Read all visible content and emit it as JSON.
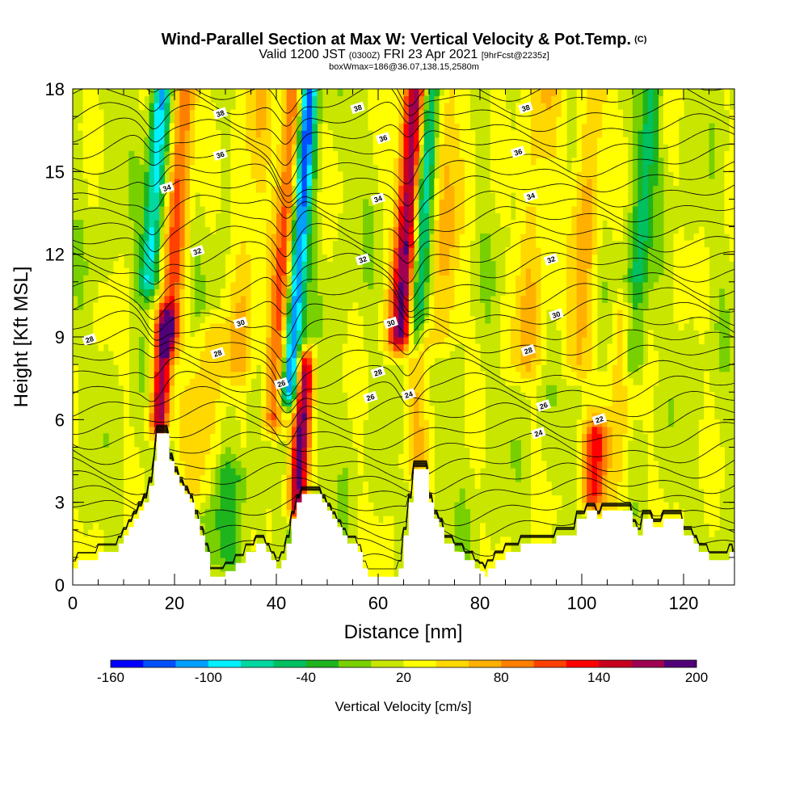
{
  "header": {
    "title": "Wind-Parallel Section at Max W: Vertical Velocity & Pot.Temp.",
    "copyright": "(C)",
    "valid_prefix": "Valid 1200 JST",
    "valid_zulu": "(0300Z)",
    "valid_date": "FRI 23 Apr 2021",
    "forecast": "[9hrFcst@2235z]",
    "box_info": "boxWmax=186@36.07,138.15,2580m"
  },
  "colors": {
    "palette": [
      "#0000ff",
      "#0050ff",
      "#00a0ff",
      "#00f0ff",
      "#00d8a0",
      "#00c060",
      "#1eb41e",
      "#78d000",
      "#c8e600",
      "#ffff00",
      "#ffd800",
      "#ffb000",
      "#ff8000",
      "#ff4000",
      "#ff0000",
      "#c8001e",
      "#a00050",
      "#500078"
    ],
    "terrain": "#ffffff"
  },
  "chart_data": {
    "type": "heatmap",
    "xlabel": "Distance [nm]",
    "ylabel": "Height [Kft MSL]",
    "xlim": [
      0,
      130
    ],
    "ylim": [
      0,
      18
    ],
    "xticks": [
      0,
      20,
      40,
      60,
      80,
      100,
      120
    ],
    "yticks": [
      0,
      3,
      6,
      9,
      12,
      15,
      18
    ],
    "colorbar": {
      "title": "Vertical Velocity [cm/s]",
      "min": -160,
      "max": 200,
      "step": 20,
      "labels": [
        "-160",
        "-100",
        "-40",
        "20",
        "80",
        "140",
        "200"
      ]
    },
    "terrain_kft": [
      [
        0,
        0.6
      ],
      [
        1,
        0.6
      ],
      [
        1,
        0.9
      ],
      [
        5,
        0.9
      ],
      [
        5,
        1.2
      ],
      [
        9,
        1.2
      ],
      [
        9,
        1.5
      ],
      [
        10,
        1.5
      ],
      [
        10,
        1.8
      ],
      [
        11,
        1.8
      ],
      [
        11,
        2.1
      ],
      [
        12,
        2.1
      ],
      [
        12,
        2.4
      ],
      [
        13,
        2.4
      ],
      [
        13,
        2.7
      ],
      [
        14,
        2.7
      ],
      [
        14,
        3.0
      ],
      [
        15,
        3.0
      ],
      [
        15,
        3.6
      ],
      [
        16,
        3.6
      ],
      [
        16,
        4.5
      ],
      [
        16.5,
        4.5
      ],
      [
        16.5,
        5.5
      ],
      [
        19,
        5.5
      ],
      [
        19,
        4.5
      ],
      [
        20,
        4.5
      ],
      [
        20,
        4.0
      ],
      [
        21,
        4.0
      ],
      [
        21,
        3.6
      ],
      [
        22,
        3.6
      ],
      [
        22,
        3.3
      ],
      [
        23,
        3.3
      ],
      [
        23,
        3.0
      ],
      [
        24,
        3.0
      ],
      [
        24,
        2.4
      ],
      [
        25,
        2.4
      ],
      [
        25,
        1.8
      ],
      [
        26,
        1.8
      ],
      [
        26,
        1.2
      ],
      [
        27,
        1.2
      ],
      [
        27,
        0.3
      ],
      [
        30,
        0.3
      ],
      [
        30,
        0.5
      ],
      [
        32,
        0.5
      ],
      [
        32,
        0.8
      ],
      [
        34,
        0.8
      ],
      [
        34,
        1.2
      ],
      [
        36,
        1.2
      ],
      [
        36,
        1.5
      ],
      [
        38,
        1.5
      ],
      [
        38,
        1.2
      ],
      [
        39,
        1.2
      ],
      [
        39,
        0.9
      ],
      [
        40,
        0.9
      ],
      [
        40,
        0.6
      ],
      [
        41,
        0.6
      ],
      [
        41,
        0.9
      ],
      [
        42,
        0.9
      ],
      [
        42,
        1.5
      ],
      [
        43,
        1.5
      ],
      [
        43,
        2.4
      ],
      [
        44,
        2.4
      ],
      [
        44,
        3.0
      ],
      [
        45,
        3.0
      ],
      [
        45,
        3.3
      ],
      [
        49,
        3.3
      ],
      [
        49,
        3.0
      ],
      [
        50,
        3.0
      ],
      [
        50,
        2.7
      ],
      [
        51,
        2.7
      ],
      [
        51,
        2.4
      ],
      [
        52,
        2.4
      ],
      [
        52,
        2.1
      ],
      [
        53,
        2.1
      ],
      [
        53,
        1.8
      ],
      [
        54,
        1.8
      ],
      [
        54,
        1.5
      ],
      [
        56,
        1.5
      ],
      [
        56,
        1.2
      ],
      [
        57,
        1.2
      ],
      [
        57,
        0.6
      ],
      [
        58,
        0.6
      ],
      [
        58,
        0.3
      ],
      [
        64,
        0.3
      ],
      [
        64,
        0.6
      ],
      [
        65,
        0.6
      ],
      [
        65,
        1.8
      ],
      [
        66,
        1.8
      ],
      [
        66,
        3.0
      ],
      [
        67,
        3.0
      ],
      [
        67,
        4.2
      ],
      [
        70,
        4.2
      ],
      [
        70,
        3.0
      ],
      [
        71,
        3.0
      ],
      [
        71,
        2.4
      ],
      [
        72,
        2.4
      ],
      [
        72,
        2.1
      ],
      [
        73,
        2.1
      ],
      [
        73,
        1.5
      ],
      [
        75,
        1.5
      ],
      [
        75,
        1.2
      ],
      [
        77,
        1.2
      ],
      [
        77,
        0.9
      ],
      [
        79,
        0.9
      ],
      [
        79,
        0.6
      ],
      [
        80,
        0.6
      ],
      [
        80,
        0.5
      ],
      [
        81,
        0.5
      ],
      [
        81,
        0.3
      ],
      [
        81.5,
        0.3
      ],
      [
        81.5,
        0.6
      ],
      [
        83,
        0.6
      ],
      [
        83,
        0.9
      ],
      [
        85,
        0.9
      ],
      [
        85,
        1.2
      ],
      [
        88,
        1.2
      ],
      [
        88,
        1.5
      ],
      [
        95,
        1.5
      ],
      [
        95,
        1.8
      ],
      [
        99,
        1.8
      ],
      [
        99,
        2.4
      ],
      [
        101,
        2.4
      ],
      [
        101,
        2.7
      ],
      [
        103,
        2.7
      ],
      [
        103,
        2.4
      ],
      [
        104,
        2.4
      ],
      [
        104,
        2.7
      ],
      [
        110,
        2.7
      ],
      [
        110,
        2.1
      ],
      [
        111,
        2.1
      ],
      [
        111,
        1.8
      ],
      [
        112,
        1.8
      ],
      [
        112,
        2.4
      ],
      [
        114,
        2.4
      ],
      [
        114,
        2.1
      ],
      [
        116,
        2.1
      ],
      [
        116,
        2.4
      ],
      [
        120,
        2.4
      ],
      [
        120,
        1.8
      ],
      [
        122,
        1.8
      ],
      [
        122,
        1.5
      ],
      [
        123,
        1.5
      ],
      [
        123,
        1.2
      ],
      [
        125,
        1.2
      ],
      [
        125,
        0.9
      ],
      [
        129,
        0.9
      ],
      [
        129,
        1.2
      ],
      [
        130,
        1.2
      ],
      [
        130,
        0
      ]
    ],
    "updrafts_cm_s": [
      {
        "x": 17,
        "y0": 6.0,
        "y1": 9.5,
        "peak": 160,
        "width": 1.3
      },
      {
        "x": 19,
        "y0": 9.0,
        "y1": 18,
        "peak": 90,
        "width": 1.6
      },
      {
        "x": 25,
        "y0": 3.5,
        "y1": 9,
        "peak": 40,
        "width": 2.5
      },
      {
        "x": 33,
        "y0": 8,
        "y1": 18,
        "peak": 40,
        "width": 2.2
      },
      {
        "x": 39.5,
        "y0": 6,
        "y1": 18,
        "peak": 100,
        "width": 1.6
      },
      {
        "x": 44,
        "y0": 3.0,
        "y1": 8,
        "peak": 160,
        "width": 1.2
      },
      {
        "x": 64.5,
        "y0": 9,
        "y1": 18,
        "peak": 180,
        "width": 1.7
      },
      {
        "x": 67,
        "y0": 4.5,
        "y1": 9,
        "peak": 40,
        "width": 2.0
      },
      {
        "x": 72,
        "y0": 9,
        "y1": 18,
        "peak": 40,
        "width": 2.5
      },
      {
        "x": 89,
        "y0": 8,
        "y1": 18,
        "peak": 40,
        "width": 2.5
      },
      {
        "x": 99,
        "y0": 8,
        "y1": 18,
        "peak": 50,
        "width": 2.0
      },
      {
        "x": 102,
        "y0": 3.3,
        "y1": 5.5,
        "peak": 100,
        "width": 1.6
      },
      {
        "x": 106,
        "y0": 3,
        "y1": 10,
        "peak": 40,
        "width": 2.0
      }
    ],
    "downdrafts_cm_s": [
      {
        "x": 15,
        "y0": 11,
        "y1": 18,
        "peak": -110,
        "width": 1.3
      },
      {
        "x": 42.5,
        "y0": 7,
        "y1": 18,
        "peak": -160,
        "width": 1.3
      },
      {
        "x": 67,
        "y0": 9,
        "y1": 18,
        "peak": -120,
        "width": 1.4
      },
      {
        "x": 110,
        "y0": 8,
        "y1": 18,
        "peak": -60,
        "width": 1.5
      },
      {
        "x": 30,
        "y0": 1,
        "y1": 4,
        "peak": -40,
        "width": 3.0
      }
    ],
    "contour_labels": [
      {
        "text": "38",
        "x": 29,
        "y": 17.1
      },
      {
        "text": "38",
        "x": 56,
        "y": 17.3
      },
      {
        "text": "38",
        "x": 89,
        "y": 17.3
      },
      {
        "text": "36",
        "x": 29,
        "y": 15.6
      },
      {
        "text": "36",
        "x": 61,
        "y": 16.2
      },
      {
        "text": "36",
        "x": 87.5,
        "y": 15.7
      },
      {
        "text": "34",
        "x": 18.5,
        "y": 14.4
      },
      {
        "text": "34",
        "x": 60,
        "y": 14.0
      },
      {
        "text": "34",
        "x": 90,
        "y": 14.1
      },
      {
        "text": "32",
        "x": 24.5,
        "y": 12.1
      },
      {
        "text": "32",
        "x": 57,
        "y": 11.8
      },
      {
        "text": "32",
        "x": 94,
        "y": 11.8
      },
      {
        "text": "30",
        "x": 33,
        "y": 9.5
      },
      {
        "text": "30",
        "x": 62.5,
        "y": 9.5
      },
      {
        "text": "30",
        "x": 95,
        "y": 9.8
      },
      {
        "text": "28",
        "x": 28.5,
        "y": 8.4
      },
      {
        "text": "28",
        "x": 60,
        "y": 7.7
      },
      {
        "text": "28",
        "x": 89.5,
        "y": 8.5
      },
      {
        "text": "28",
        "x": 3.3,
        "y": 8.9
      },
      {
        "text": "26",
        "x": 41,
        "y": 7.3
      },
      {
        "text": "26",
        "x": 58.5,
        "y": 6.8
      },
      {
        "text": "26",
        "x": 92.5,
        "y": 6.5
      },
      {
        "text": "24",
        "x": 66,
        "y": 6.9
      },
      {
        "text": "24",
        "x": 91.5,
        "y": 5.5
      },
      {
        "text": "22",
        "x": 103.5,
        "y": 6.0
      }
    ]
  }
}
